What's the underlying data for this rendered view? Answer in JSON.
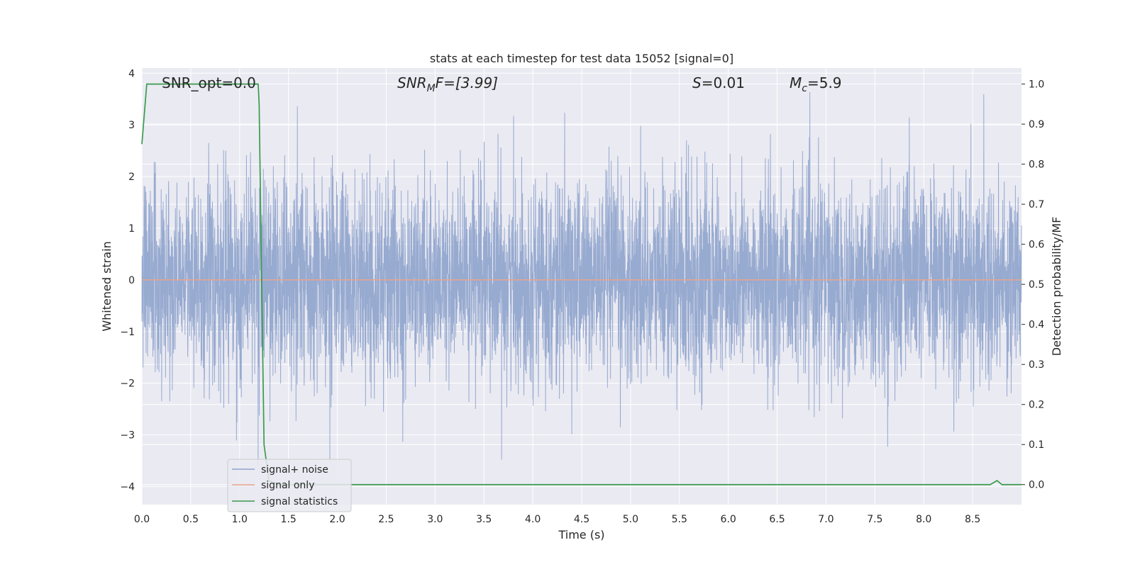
{
  "chart_data": {
    "type": "line",
    "title": "stats at each timestep for test data 15052 [signal=0]",
    "xlabel": "Time (s)",
    "ylabel_left": "Whitened strain",
    "ylabel_right": "Detection probability/MF",
    "xlim": [
      0.0,
      9.0
    ],
    "ylim_left": [
      -4.35,
      4.1
    ],
    "ylim_right": [
      -0.05,
      1.04
    ],
    "xticks": [
      "0.0",
      "0.5",
      "1.0",
      "1.5",
      "2.0",
      "2.5",
      "3.0",
      "3.5",
      "4.0",
      "4.5",
      "5.0",
      "5.5",
      "6.0",
      "6.5",
      "7.0",
      "7.5",
      "8.0",
      "8.5"
    ],
    "xtick_values": [
      0.0,
      0.5,
      1.0,
      1.5,
      2.0,
      2.5,
      3.0,
      3.5,
      4.0,
      4.5,
      5.0,
      5.5,
      6.0,
      6.5,
      7.0,
      7.5,
      8.0,
      8.5
    ],
    "yticks_left": [
      "−4",
      "−3",
      "−2",
      "−1",
      "0",
      "1",
      "2",
      "3",
      "4"
    ],
    "ytick_values_left": [
      -4,
      -3,
      -2,
      -1,
      0,
      1,
      2,
      3,
      4
    ],
    "yticks_right": [
      "0.0",
      "0.1",
      "0.2",
      "0.3",
      "0.4",
      "0.5",
      "0.6",
      "0.7",
      "0.8",
      "0.9",
      "1.0"
    ],
    "ytick_values_right": [
      0.0,
      0.1,
      0.2,
      0.3,
      0.4,
      0.5,
      0.6,
      0.7,
      0.8,
      0.9,
      1.0
    ],
    "grid": true,
    "legend_position": "lower-left",
    "annotations": {
      "snr_opt": "SNR_opt=0.0",
      "snr_mf_prefix": "SNR",
      "snr_mf_sub": "M",
      "snr_mf_suffix": "F=[3.99]",
      "s_prefix": "S",
      "s_suffix": "=0.01",
      "mc_prefix": "M",
      "mc_sub": "c",
      "mc_suffix": "=5.9"
    },
    "series": [
      {
        "name": "signal+ noise",
        "color": "#8ea3cc",
        "axis": "left",
        "kind": "noise",
        "approx_std": 0.95,
        "envelope": [
          -3.6,
          3.7
        ]
      },
      {
        "name": "signal only",
        "color": "#e8a58c",
        "axis": "left",
        "x": [
          0.0,
          9.0
        ],
        "y": [
          0.0,
          0.0
        ]
      },
      {
        "name": "signal statistics",
        "color": "#3b9b4d",
        "axis": "right",
        "x": [
          0.0,
          0.05,
          0.1,
          0.2,
          1.0,
          1.19,
          1.2,
          1.22,
          1.25,
          1.3,
          1.4,
          2.0,
          5.0,
          8.0,
          8.68,
          8.75,
          8.8,
          8.9,
          9.0
        ],
        "y": [
          0.85,
          1.0,
          1.0,
          1.0,
          1.0,
          1.0,
          0.95,
          0.6,
          0.1,
          0.01,
          0.0,
          0.0,
          0.0,
          0.0,
          0.0,
          0.01,
          0.0,
          0.0,
          0.0
        ]
      }
    ]
  }
}
